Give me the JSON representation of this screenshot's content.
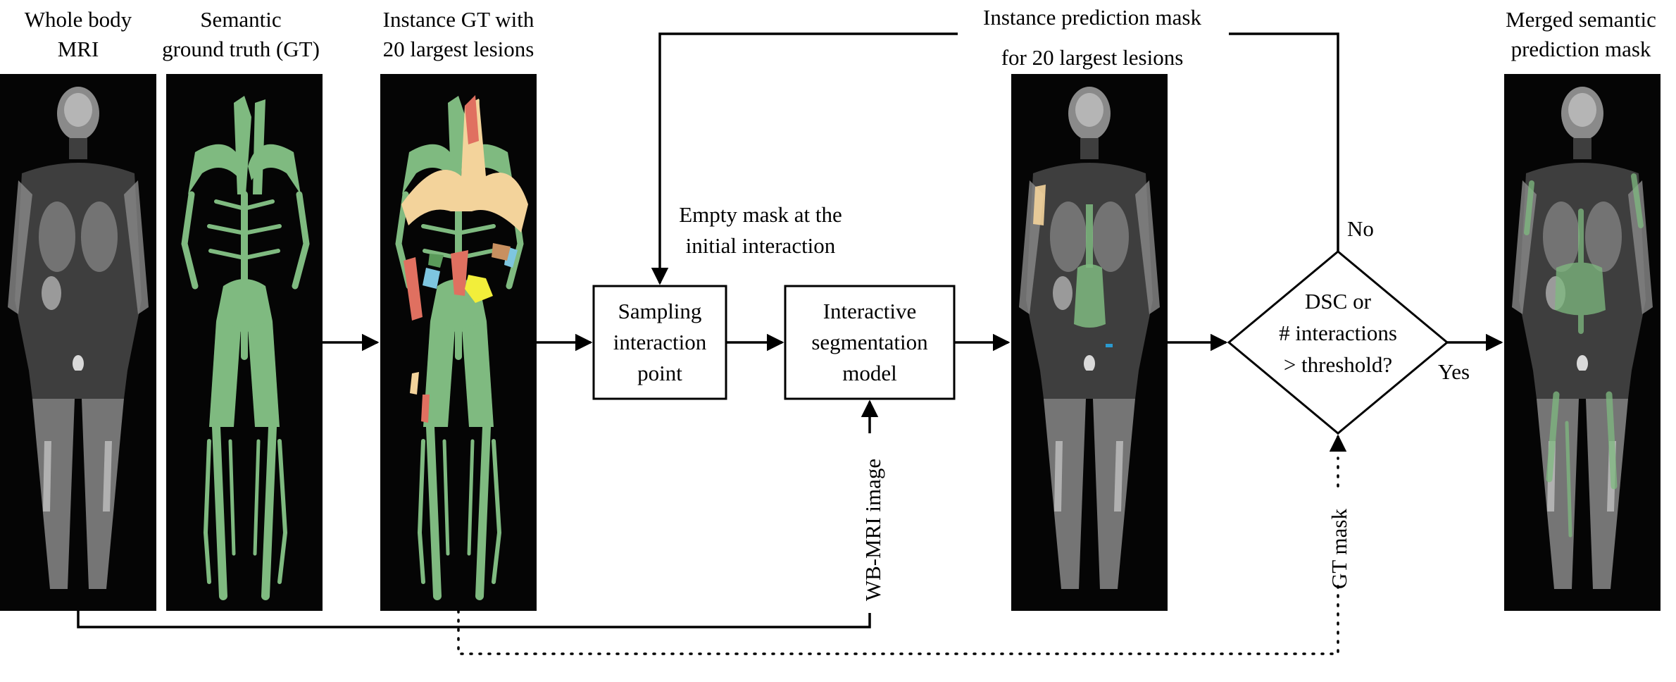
{
  "panels": {
    "mri": {
      "title": [
        "Whole body",
        "MRI"
      ]
    },
    "semantic_gt": {
      "title": [
        "Semantic",
        "ground truth (GT)"
      ]
    },
    "instance_gt": {
      "title": [
        "Instance GT with",
        "20 largest lesions"
      ]
    },
    "instance_pred": {
      "title": [
        "Instance prediction mask",
        "for 20 largest lesions"
      ]
    },
    "merged_pred": {
      "title": [
        "Merged semantic",
        "prediction mask"
      ]
    }
  },
  "boxes": {
    "sampling": [
      "Sampling",
      "interaction",
      "point"
    ],
    "model": [
      "Interactive",
      "segmentation",
      "model"
    ]
  },
  "decision": [
    "DSC or",
    "# interactions",
    "> threshold?"
  ],
  "annotations": {
    "empty_mask": [
      "Empty mask at the",
      "initial interaction"
    ],
    "no": "No",
    "yes": "Yes",
    "wbmri": "WB-MRI image",
    "gt_mask": "GT mask"
  },
  "colors": {
    "lesion_green": "#7fba80",
    "instance_palette": [
      "#f3d39b",
      "#e07060",
      "#7ec6e0",
      "#f2ee3a",
      "#5a9a5a",
      "#c89060"
    ]
  }
}
